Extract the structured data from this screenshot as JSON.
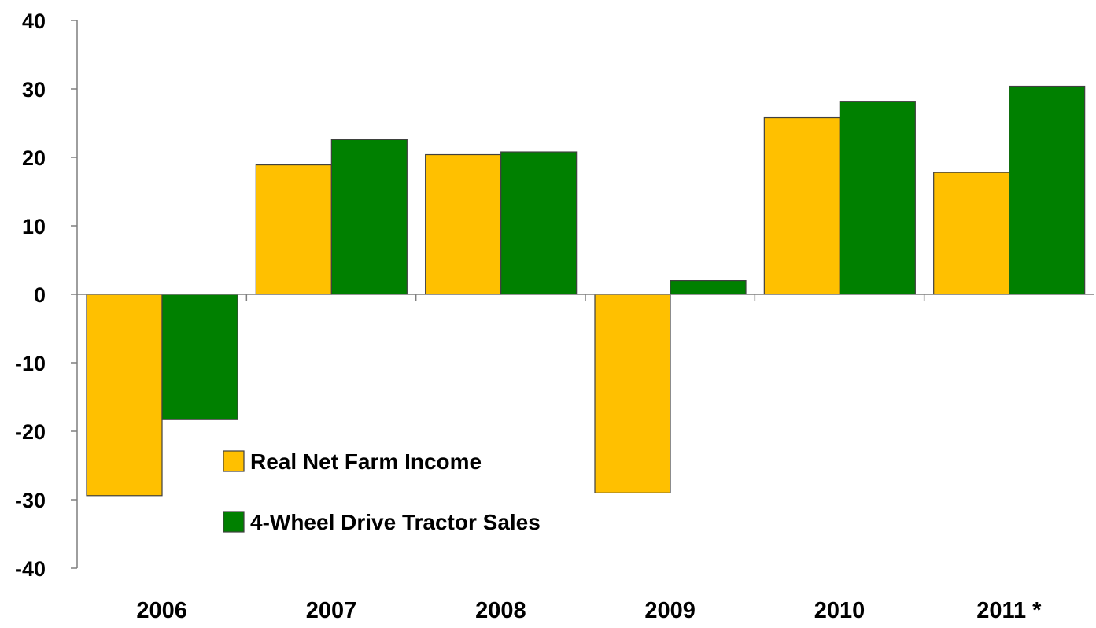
{
  "chart_data": {
    "type": "bar",
    "title": "",
    "xlabel": "",
    "ylabel": "",
    "categories": [
      "2006",
      "2007",
      "2008",
      "2009",
      "2010",
      "2011 *"
    ],
    "series": [
      {
        "name": "Real Net Farm Income",
        "color": "#FFC000",
        "values": [
          -29.4,
          18.9,
          20.4,
          -29.0,
          25.8,
          17.8
        ]
      },
      {
        "name": "4-Wheel Drive Tractor Sales",
        "color": "#008000",
        "values": [
          -18.3,
          22.6,
          20.8,
          2.0,
          28.2,
          30.4
        ]
      }
    ],
    "ylim": [
      -40,
      40
    ],
    "yticks": [
      "-40",
      "-30",
      "-20",
      "-10",
      "0",
      "10",
      "20",
      "30",
      "40"
    ],
    "grid": false,
    "legend_position": "bottom-left-inside"
  }
}
